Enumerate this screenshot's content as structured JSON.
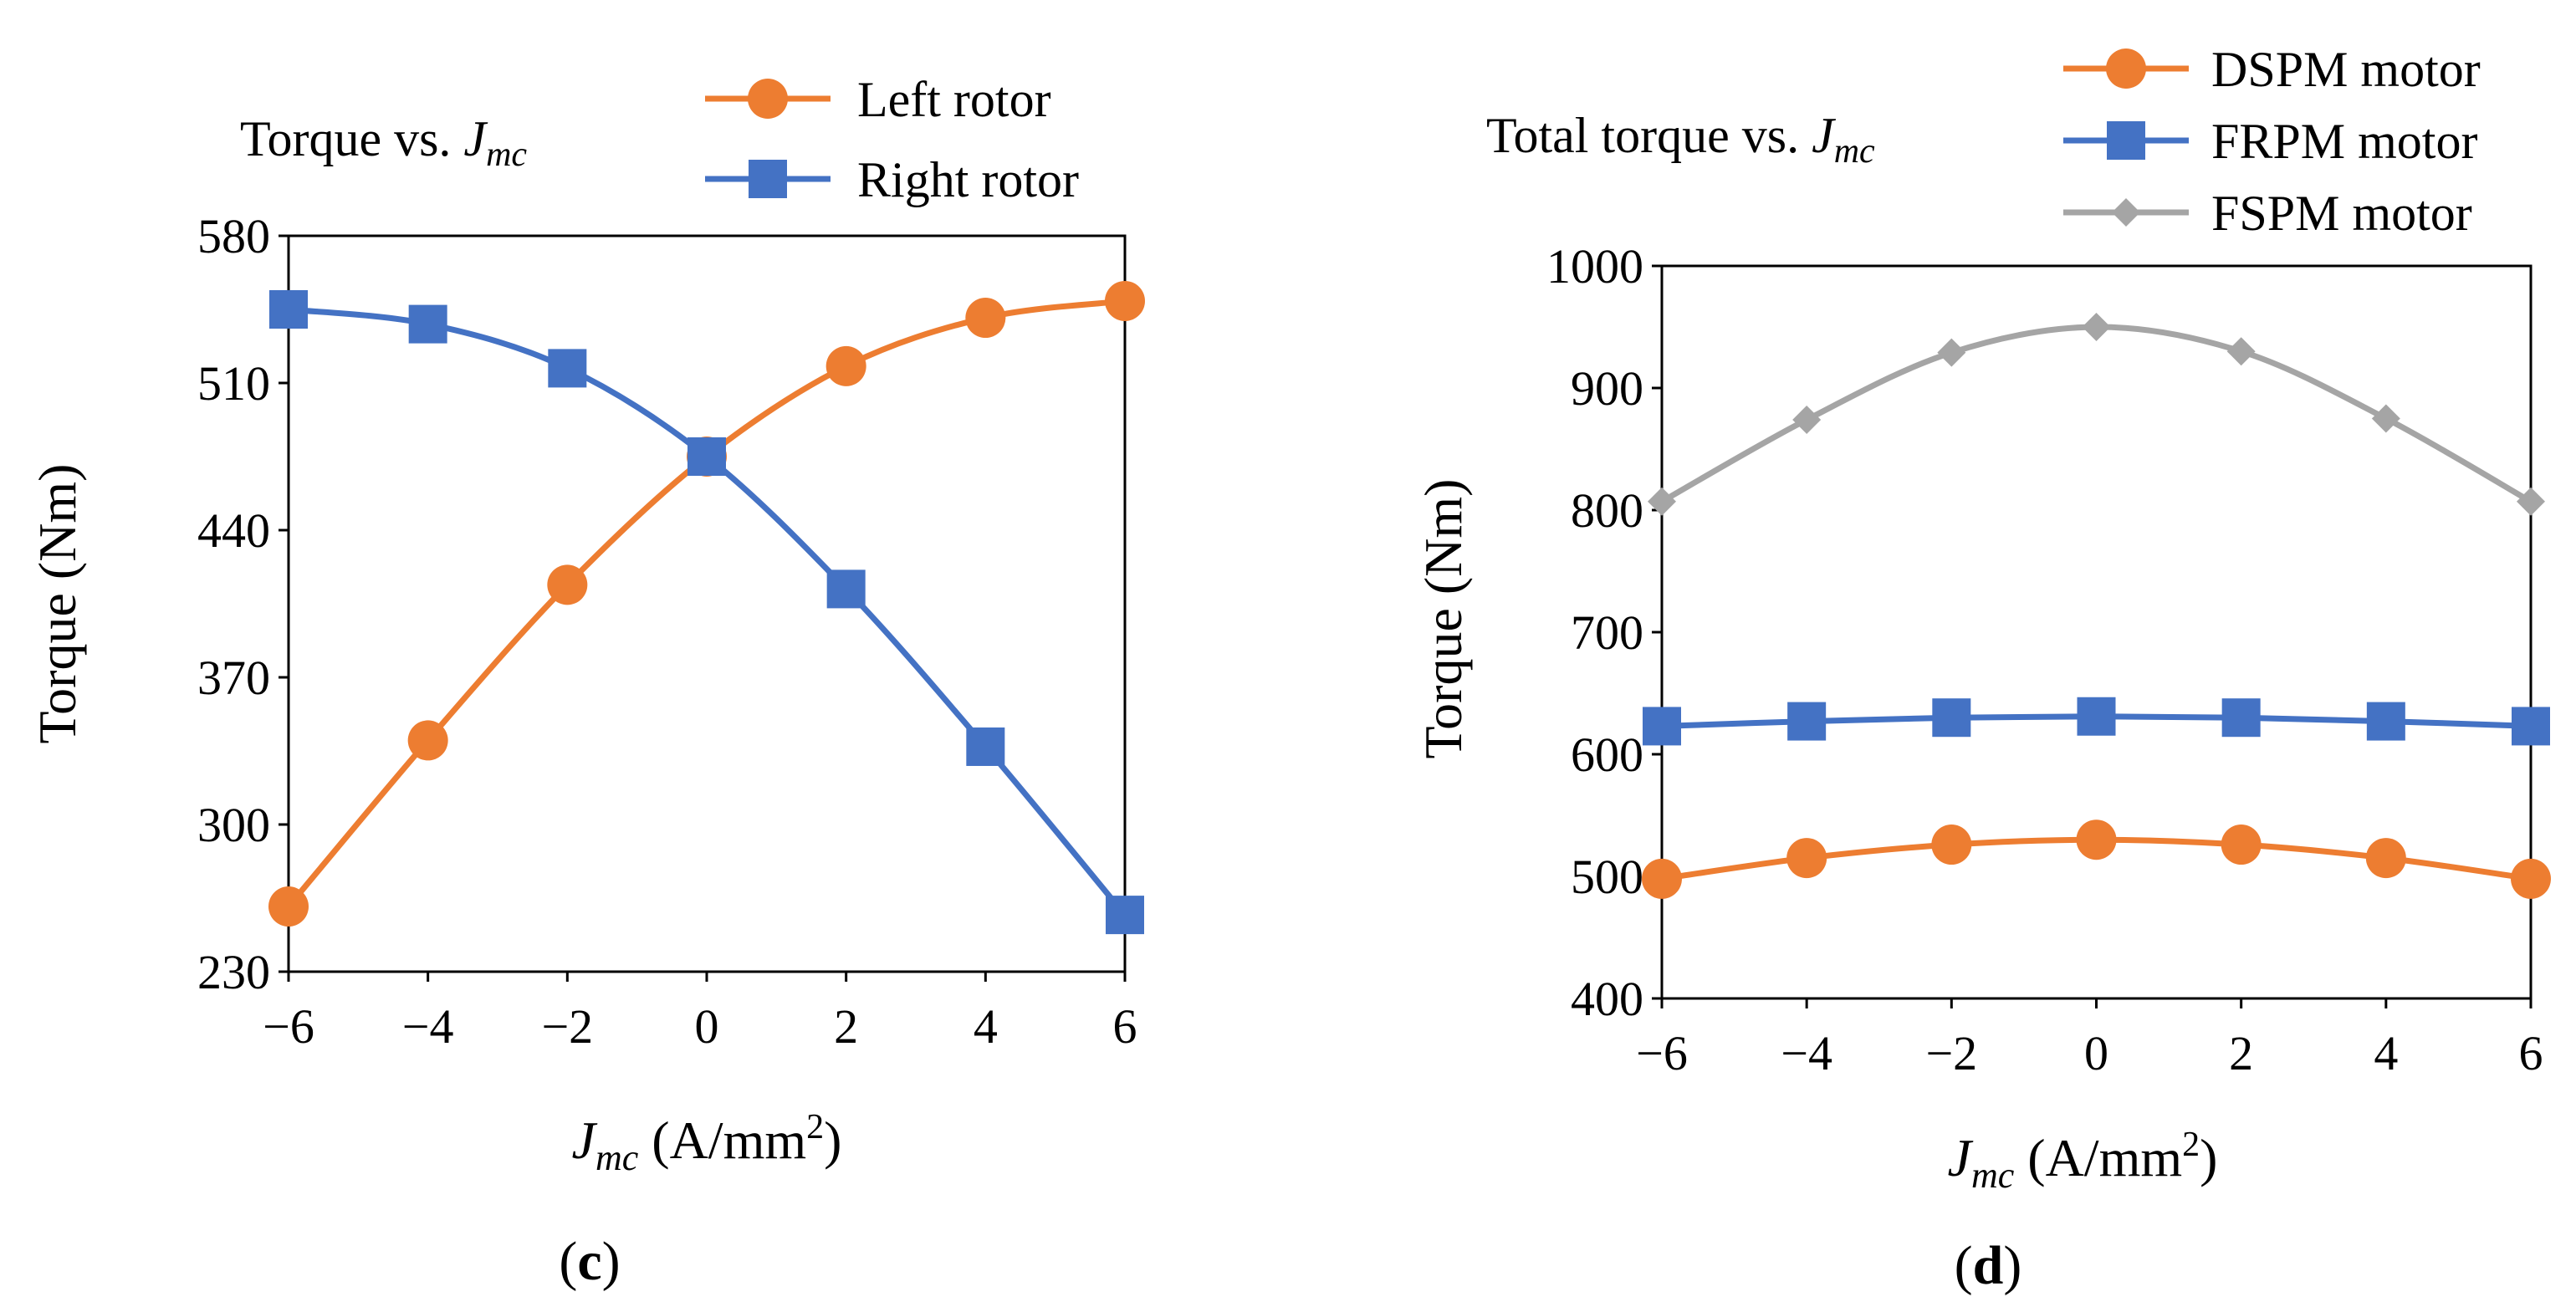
{
  "chart_data": [
    {
      "type": "line",
      "panel_label": "c",
      "title": "Torque vs. ",
      "title_var": "J",
      "title_sub": "mc",
      "x": [
        -6,
        -4,
        -2,
        0,
        2,
        4,
        6
      ],
      "x_ticks": [
        "−6",
        "−4",
        "−2",
        "0",
        "2",
        "4",
        "6"
      ],
      "xlim": [
        -6,
        6
      ],
      "xlabel_var": "J",
      "xlabel_sub": "mc",
      "xlabel_unit": " (A/mm",
      "xlabel_sup": "2",
      "xlabel_close": ")",
      "ylabel": "Torque (Nm)",
      "ylim": [
        230,
        580
      ],
      "y_ticks": [
        230,
        300,
        370,
        440,
        510,
        580
      ],
      "grid": false,
      "legend_position": "top-right",
      "series": [
        {
          "name": "Left rotor",
          "color": "#ED7D31",
          "marker": "circle",
          "values": [
            261,
            340,
            414,
            475,
            518,
            541,
            549
          ]
        },
        {
          "name": "Right rotor",
          "color": "#4472C4",
          "marker": "square",
          "values": [
            545,
            538,
            517,
            475,
            412,
            337,
            257
          ]
        }
      ]
    },
    {
      "type": "line",
      "panel_label": "d",
      "title": "Total torque vs. ",
      "title_var": "J",
      "title_sub": "mc",
      "x": [
        -6,
        -4,
        -2,
        0,
        2,
        4,
        6
      ],
      "x_ticks": [
        "−6",
        "−4",
        "−2",
        "0",
        "2",
        "4",
        "6"
      ],
      "xlim": [
        -6,
        6
      ],
      "xlabel_var": "J",
      "xlabel_sub": "mc",
      "xlabel_unit": " (A/mm",
      "xlabel_sup": "2",
      "xlabel_close": ")",
      "ylabel": "Torque (Nm)",
      "ylim": [
        400,
        1000
      ],
      "y_ticks": [
        400,
        500,
        600,
        700,
        800,
        900,
        1000
      ],
      "grid": false,
      "legend_position": "top-right",
      "series": [
        {
          "name": "DSPM motor",
          "color": "#ED7D31",
          "marker": "circle",
          "values": [
            498,
            515,
            526,
            530,
            526,
            515,
            498
          ]
        },
        {
          "name": "FRPM motor",
          "color": "#4472C4",
          "marker": "square",
          "values": [
            623,
            627,
            630,
            631,
            630,
            627,
            623
          ]
        },
        {
          "name": "FSPM motor",
          "color": "#A5A5A5",
          "marker": "diamond",
          "values": [
            807,
            874,
            929,
            950,
            930,
            875,
            807
          ]
        }
      ]
    }
  ]
}
